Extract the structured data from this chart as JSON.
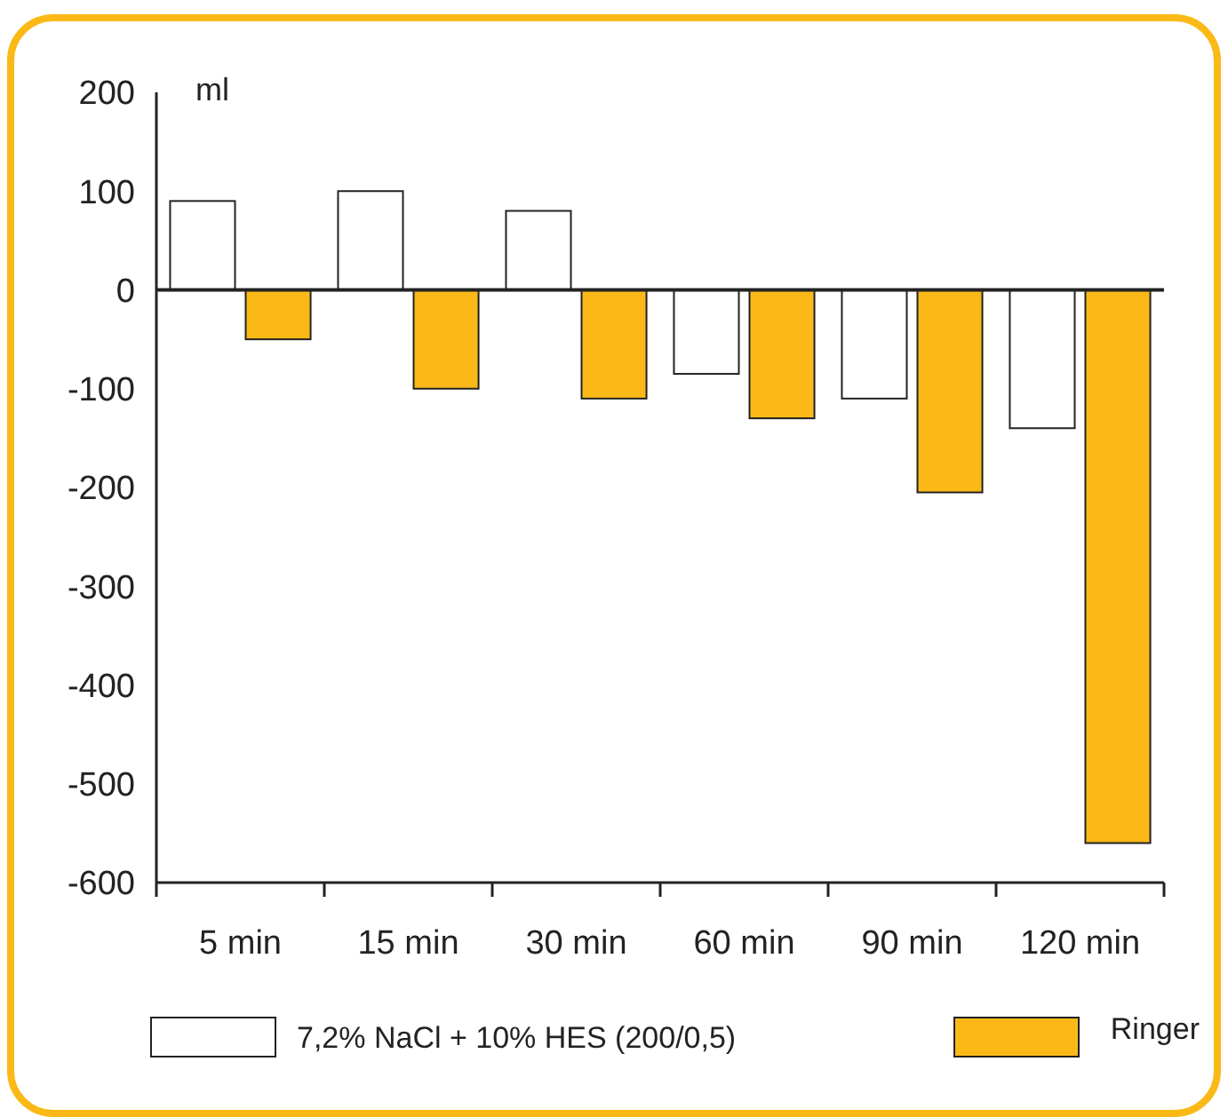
{
  "chart_data": {
    "type": "bar",
    "ylabel": "ml",
    "categories": [
      "5 min",
      "15 min",
      "30 min",
      "60 min",
      "90 min",
      "120 min"
    ],
    "series": [
      {
        "name": "7,2% NaCl + 10% HES (200/0,5)",
        "color": "#ffffff",
        "values": [
          90,
          100,
          80,
          -85,
          -110,
          -140
        ]
      },
      {
        "name": "Ringer",
        "color": "#fbb918",
        "values": [
          -50,
          -100,
          -110,
          -130,
          -205,
          -560
        ]
      }
    ],
    "ylim": [
      -600,
      200
    ],
    "yticks": [
      -600,
      -500,
      -400,
      -300,
      -200,
      -100,
      0,
      100,
      200
    ],
    "ref_lines": [
      {
        "axis": "y",
        "value": 0
      }
    ],
    "grid": false,
    "legend": "bottom"
  }
}
